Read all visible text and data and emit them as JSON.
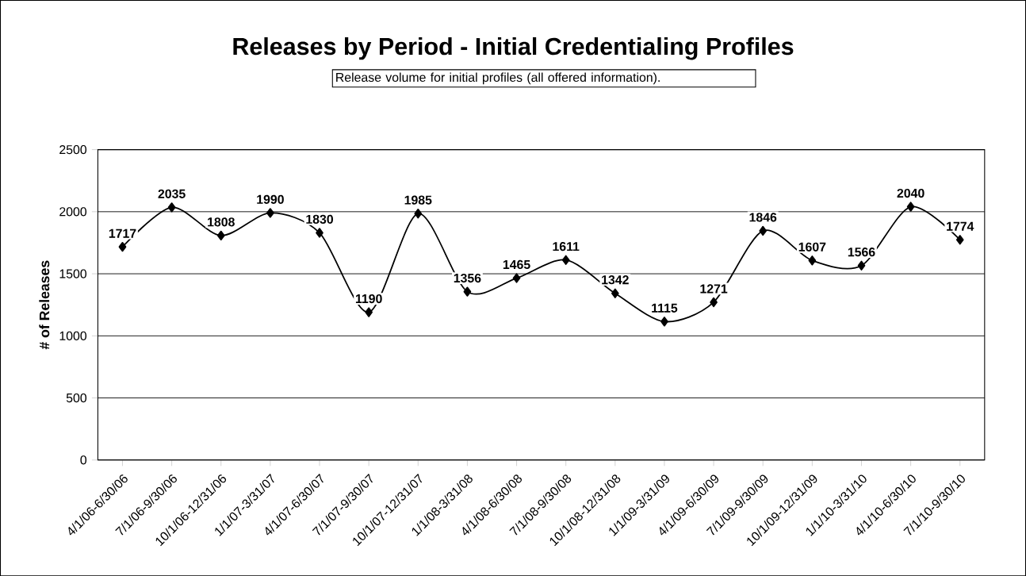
{
  "chart_data": {
    "type": "line",
    "title": "Releases by Period - Initial Credentialing Profiles",
    "subtitle": "Release volume for initial profiles (all offered information).",
    "ylabel": "# of Releases",
    "categories": [
      "4/1/06-6/30/06",
      "7/1/06-9/30/06",
      "10/1/06-12/31/06",
      "1/1/07-3/31/07",
      "4/1/07-6/30/07",
      "7/1/07-9/30/07",
      "10/1/07-12/31/07",
      "1/1/08-3/31/08",
      "4/1/08-6/30/08",
      "7/1/08-9/30/08",
      "10/1/08-12/31/08",
      "1/1/09-3/31/09",
      "4/1/09-6/30/09",
      "7/1/09-9/30/09",
      "10/1/09-12/31/09",
      "1/1/10-3/31/10",
      "4/1/10-6/30/10",
      "7/1/10-9/30/10"
    ],
    "values": [
      1717,
      2035,
      1808,
      1990,
      1830,
      1190,
      1985,
      1356,
      1465,
      1611,
      1342,
      1115,
      1271,
      1846,
      1607,
      1566,
      2040,
      1774
    ],
    "color": "#000000",
    "ylim": [
      0,
      2500
    ],
    "yticks": [
      0,
      500,
      1000,
      1500,
      2000,
      2500
    ],
    "grid": "y",
    "marker": "diamond",
    "line_style": "solid",
    "data_labels": true
  }
}
